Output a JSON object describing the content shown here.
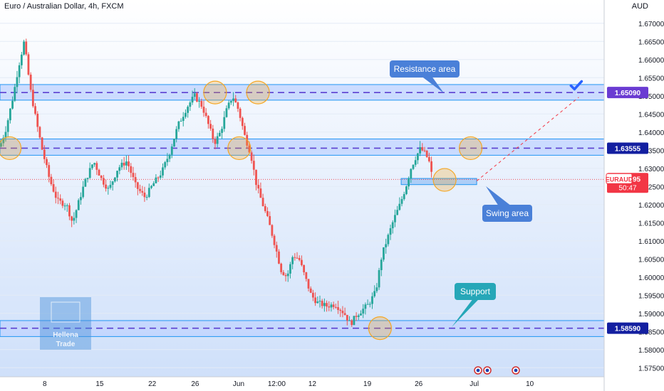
{
  "title": "Euro / Australian Dollar, 4h, FXCM",
  "currency": "AUD",
  "colors": {
    "up": "#26a69a",
    "down": "#ef5350",
    "zone_fill": "#bfd3ff",
    "zone_border": "#2196f3",
    "dash": "#5b3fd0",
    "callout": "#4a80d8",
    "support_callout": "#26a7b8",
    "circle": "#f5a623",
    "price_tag": "#f23645",
    "purple_tag": "#6a3bd2",
    "navy_tag": "#131fa0"
  },
  "chart_data": {
    "type": "candlestick",
    "symbol": "EURAUD",
    "timeframe": "4h",
    "ylim": [
      1.5725,
      1.6725
    ],
    "y_ticks": [
      "1.67000",
      "1.66500",
      "1.66000",
      "1.65500",
      "1.65000",
      "1.64500",
      "1.64000",
      "1.63500",
      "1.63000",
      "1.62500",
      "1.62000",
      "1.61500",
      "1.61000",
      "1.60500",
      "1.60000",
      "1.59500",
      "1.59000",
      "1.58500",
      "1.58000",
      "1.57500"
    ],
    "x_ticks": [
      {
        "label": "8",
        "pos": 0.074
      },
      {
        "label": "15",
        "pos": 0.165
      },
      {
        "label": "22",
        "pos": 0.252
      },
      {
        "label": "26",
        "pos": 0.323
      },
      {
        "label": "Jun",
        "pos": 0.395
      },
      {
        "label": "12:00",
        "pos": 0.458
      },
      {
        "label": "12",
        "pos": 0.517
      },
      {
        "label": "19",
        "pos": 0.608
      },
      {
        "label": "26",
        "pos": 0.693
      },
      {
        "label": "Jul",
        "pos": 0.785
      },
      {
        "label": "10",
        "pos": 0.877
      }
    ],
    "levels": [
      {
        "name": "resistance",
        "value": 1.6509,
        "label": "1.65090",
        "zone": [
          1.6488,
          1.6531
        ]
      },
      {
        "name": "middle",
        "value": 1.63555,
        "label": "1.63555",
        "zone": [
          1.6336,
          1.6381
        ]
      },
      {
        "name": "support",
        "value": 1.5859,
        "label": "1.58590",
        "zone": [
          1.5836,
          1.588
        ]
      }
    ],
    "current_price": {
      "symbol": "EURAUD",
      "value": 1.62695,
      "label": "1.62695",
      "countdown": "50:47"
    },
    "swing_zone": [
      1.6255,
      1.6272
    ],
    "annotations": [
      "Resistance area",
      "Swing area",
      "Support"
    ],
    "watermark": [
      "Hellena",
      "Trade"
    ],
    "path_anchors": [
      [
        0,
        1.636
      ],
      [
        0.01,
        1.641
      ],
      [
        0.022,
        1.65
      ],
      [
        0.03,
        1.6575
      ],
      [
        0.04,
        1.665
      ],
      [
        0.05,
        1.652
      ],
      [
        0.06,
        1.643
      ],
      [
        0.07,
        1.635
      ],
      [
        0.082,
        1.627
      ],
      [
        0.095,
        1.621
      ],
      [
        0.11,
        1.62
      ],
      [
        0.12,
        1.615
      ],
      [
        0.128,
        1.6195
      ],
      [
        0.14,
        1.626
      ],
      [
        0.155,
        1.632
      ],
      [
        0.168,
        1.627
      ],
      [
        0.18,
        1.624
      ],
      [
        0.195,
        1.63
      ],
      [
        0.21,
        1.632
      ],
      [
        0.225,
        1.625
      ],
      [
        0.24,
        1.622
      ],
      [
        0.255,
        1.626
      ],
      [
        0.268,
        1.629
      ],
      [
        0.28,
        1.634
      ],
      [
        0.295,
        1.642
      ],
      [
        0.31,
        1.647
      ],
      [
        0.322,
        1.65
      ],
      [
        0.335,
        1.647
      ],
      [
        0.345,
        1.642
      ],
      [
        0.355,
        1.637
      ],
      [
        0.365,
        1.64
      ],
      [
        0.375,
        1.646
      ],
      [
        0.385,
        1.65
      ],
      [
        0.395,
        1.646
      ],
      [
        0.405,
        1.639
      ],
      [
        0.415,
        1.634
      ],
      [
        0.425,
        1.625
      ],
      [
        0.435,
        1.62
      ],
      [
        0.445,
        1.615
      ],
      [
        0.455,
        1.609
      ],
      [
        0.465,
        1.602
      ],
      [
        0.475,
        1.6
      ],
      [
        0.485,
        1.606
      ],
      [
        0.495,
        1.605
      ],
      [
        0.505,
        1.6
      ],
      [
        0.515,
        1.595
      ],
      [
        0.525,
        1.593
      ],
      [
        0.54,
        1.592
      ],
      [
        0.555,
        1.5925
      ],
      [
        0.57,
        1.59
      ],
      [
        0.58,
        1.587
      ],
      [
        0.59,
        1.5895
      ],
      [
        0.6,
        1.591
      ],
      [
        0.61,
        1.5925
      ],
      [
        0.622,
        1.596
      ],
      [
        0.632,
        1.606
      ],
      [
        0.642,
        1.611
      ],
      [
        0.652,
        1.616
      ],
      [
        0.662,
        1.62
      ],
      [
        0.672,
        1.625
      ],
      [
        0.68,
        1.63
      ],
      [
        0.688,
        1.633
      ],
      [
        0.696,
        1.6355
      ],
      [
        0.704,
        1.634
      ],
      [
        0.71,
        1.632
      ],
      [
        0.716,
        1.627
      ]
    ]
  }
}
